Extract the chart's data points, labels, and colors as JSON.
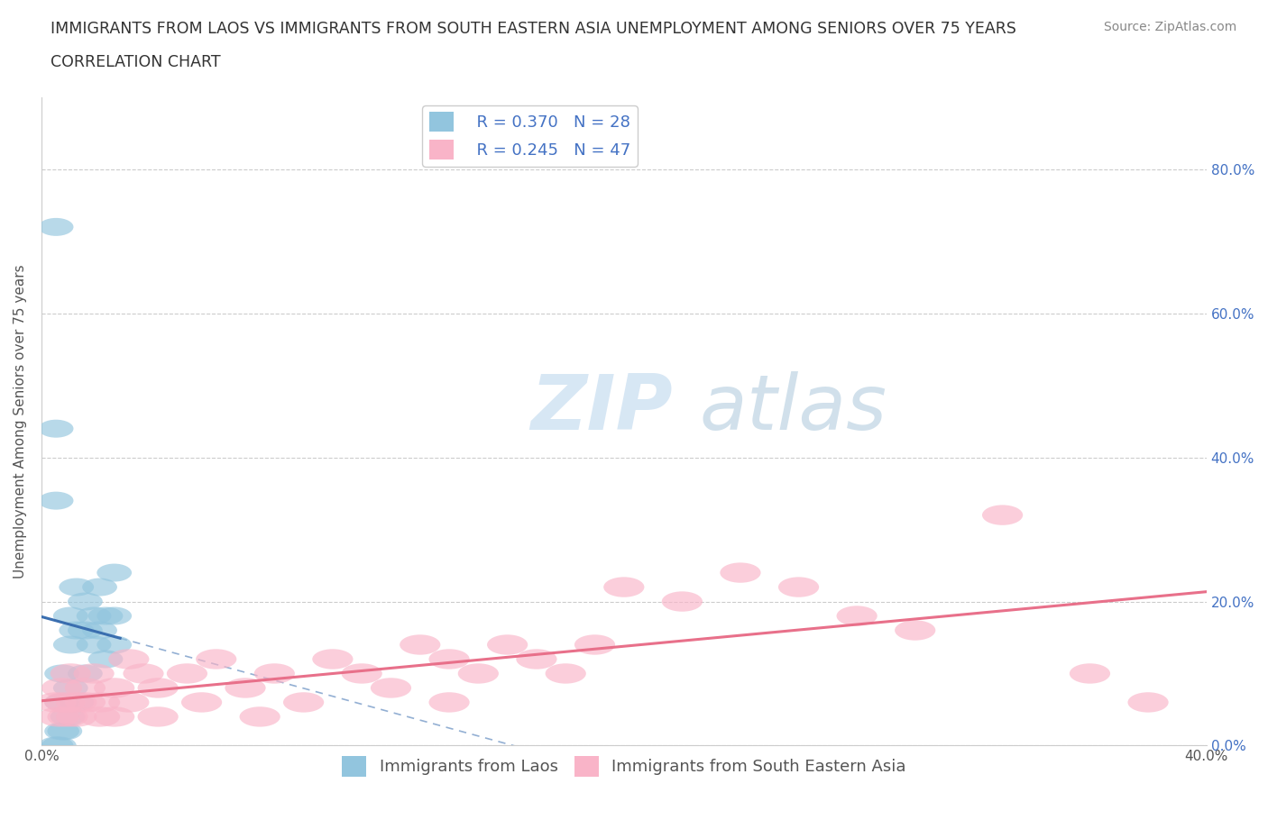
{
  "title_line1": "IMMIGRANTS FROM LAOS VS IMMIGRANTS FROM SOUTH EASTERN ASIA UNEMPLOYMENT AMONG SENIORS OVER 75 YEARS",
  "title_line2": "CORRELATION CHART",
  "source": "Source: ZipAtlas.com",
  "ylabel": "Unemployment Among Seniors over 75 years",
  "xlim": [
    0.0,
    0.4
  ],
  "ylim": [
    0.0,
    0.9
  ],
  "xtick_vals": [
    0.0,
    0.4
  ],
  "xtick_labels": [
    "0.0%",
    "40.0%"
  ],
  "ytick_vals": [
    0.0,
    0.2,
    0.4,
    0.6,
    0.8
  ],
  "ytick_labels_right": [
    "0.0%",
    "20.0%",
    "40.0%",
    "60.0%",
    "80.0%"
  ],
  "blue_color": "#92C5DE",
  "pink_color": "#F9B4C8",
  "blue_line_color": "#3A6EAF",
  "pink_line_color": "#E8708A",
  "right_tick_color": "#4472C4",
  "R_blue": 0.37,
  "N_blue": 28,
  "R_pink": 0.245,
  "N_pink": 47,
  "blue_x": [
    0.005,
    0.005,
    0.005,
    0.007,
    0.007,
    0.007,
    0.01,
    0.01,
    0.01,
    0.012,
    0.012,
    0.015,
    0.015,
    0.015,
    0.018,
    0.018,
    0.02,
    0.02,
    0.022,
    0.022,
    0.025,
    0.025,
    0.025,
    0.005,
    0.006,
    0.008,
    0.009,
    0.012
  ],
  "blue_y": [
    0.72,
    0.44,
    0.34,
    0.1,
    0.06,
    0.02,
    0.18,
    0.14,
    0.08,
    0.22,
    0.16,
    0.2,
    0.16,
    0.1,
    0.18,
    0.14,
    0.22,
    0.16,
    0.18,
    0.12,
    0.24,
    0.18,
    0.14,
    0.0,
    0.0,
    0.02,
    0.04,
    0.06
  ],
  "pink_x": [
    0.005,
    0.006,
    0.007,
    0.008,
    0.009,
    0.01,
    0.012,
    0.012,
    0.015,
    0.015,
    0.018,
    0.02,
    0.02,
    0.025,
    0.025,
    0.03,
    0.03,
    0.035,
    0.04,
    0.04,
    0.05,
    0.055,
    0.06,
    0.07,
    0.075,
    0.08,
    0.09,
    0.1,
    0.11,
    0.12,
    0.13,
    0.14,
    0.14,
    0.15,
    0.16,
    0.17,
    0.18,
    0.19,
    0.2,
    0.22,
    0.24,
    0.26,
    0.28,
    0.3,
    0.33,
    0.36,
    0.38
  ],
  "pink_y": [
    0.06,
    0.04,
    0.08,
    0.06,
    0.04,
    0.1,
    0.06,
    0.04,
    0.08,
    0.06,
    0.1,
    0.06,
    0.04,
    0.08,
    0.04,
    0.12,
    0.06,
    0.1,
    0.08,
    0.04,
    0.1,
    0.06,
    0.12,
    0.08,
    0.04,
    0.1,
    0.06,
    0.12,
    0.1,
    0.08,
    0.14,
    0.12,
    0.06,
    0.1,
    0.14,
    0.12,
    0.1,
    0.14,
    0.22,
    0.2,
    0.24,
    0.22,
    0.18,
    0.16,
    0.32,
    0.1,
    0.06
  ],
  "watermark_zip": "ZIP",
  "watermark_atlas": "atlas",
  "title_fontsize": 12.5,
  "subtitle_fontsize": 12.5,
  "axis_label_fontsize": 11,
  "tick_fontsize": 11,
  "legend_fontsize": 13,
  "source_fontsize": 10
}
